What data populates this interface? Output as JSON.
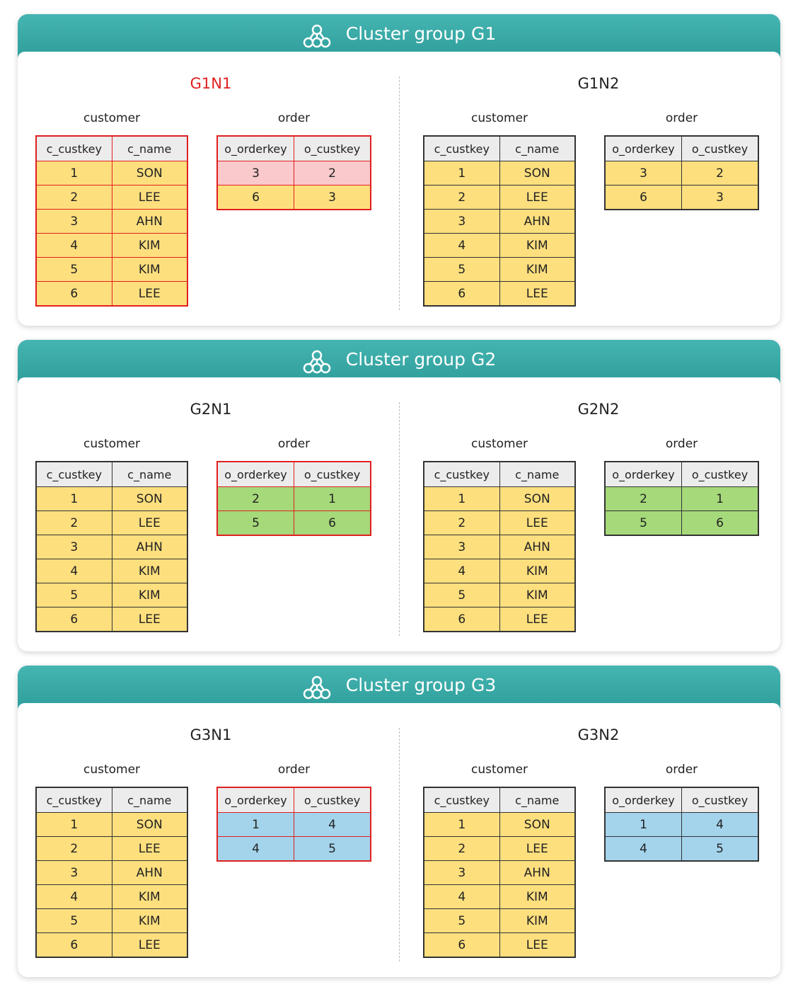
{
  "groups": [
    {
      "title": "Cluster group G1",
      "nodes": [
        {
          "name": "G1N1",
          "tables": [
            {
              "caption": "customer",
              "header": [
                "c_custkey",
                "c_name"
              ],
              "rows": [
                [
                  "1",
                  "SON"
                ],
                [
                  "2",
                  "LEE"
                ],
                [
                  "3",
                  "AHN"
                ],
                [
                  "4",
                  "KIM"
                ],
                [
                  "5",
                  "KIM"
                ],
                [
                  "6",
                  "LEE"
                ]
              ]
            },
            {
              "caption": "order",
              "header": [
                "o_orderkey",
                "o_custkey"
              ],
              "rows": [
                [
                  "3",
                  "2"
                ],
                [
                  "6",
                  "3"
                ]
              ]
            }
          ]
        },
        {
          "name": "G1N2",
          "tables": [
            {
              "caption": "customer",
              "header": [
                "c_custkey",
                "c_name"
              ],
              "rows": [
                [
                  "1",
                  "SON"
                ],
                [
                  "2",
                  "LEE"
                ],
                [
                  "3",
                  "AHN"
                ],
                [
                  "4",
                  "KIM"
                ],
                [
                  "5",
                  "KIM"
                ],
                [
                  "6",
                  "LEE"
                ]
              ]
            },
            {
              "caption": "order",
              "header": [
                "o_orderkey",
                "o_custkey"
              ],
              "rows": [
                [
                  "3",
                  "2"
                ],
                [
                  "6",
                  "3"
                ]
              ]
            }
          ]
        }
      ]
    },
    {
      "title": "Cluster group G2",
      "nodes": [
        {
          "name": "G2N1",
          "tables": [
            {
              "caption": "customer",
              "header": [
                "c_custkey",
                "c_name"
              ],
              "rows": [
                [
                  "1",
                  "SON"
                ],
                [
                  "2",
                  "LEE"
                ],
                [
                  "3",
                  "AHN"
                ],
                [
                  "4",
                  "KIM"
                ],
                [
                  "5",
                  "KIM"
                ],
                [
                  "6",
                  "LEE"
                ]
              ]
            },
            {
              "caption": "order",
              "header": [
                "o_orderkey",
                "o_custkey"
              ],
              "rows": [
                [
                  "2",
                  "1"
                ],
                [
                  "5",
                  "6"
                ]
              ]
            }
          ]
        },
        {
          "name": "G2N2",
          "tables": [
            {
              "caption": "customer",
              "header": [
                "c_custkey",
                "c_name"
              ],
              "rows": [
                [
                  "1",
                  "SON"
                ],
                [
                  "2",
                  "LEE"
                ],
                [
                  "3",
                  "AHN"
                ],
                [
                  "4",
                  "KIM"
                ],
                [
                  "5",
                  "KIM"
                ],
                [
                  "6",
                  "LEE"
                ]
              ]
            },
            {
              "caption": "order",
              "header": [
                "o_orderkey",
                "o_custkey"
              ],
              "rows": [
                [
                  "2",
                  "1"
                ],
                [
                  "5",
                  "6"
                ]
              ]
            }
          ]
        }
      ]
    },
    {
      "title": "Cluster group G3",
      "nodes": [
        {
          "name": "G3N1",
          "tables": [
            {
              "caption": "customer",
              "header": [
                "c_custkey",
                "c_name"
              ],
              "rows": [
                [
                  "1",
                  "SON"
                ],
                [
                  "2",
                  "LEE"
                ],
                [
                  "3",
                  "AHN"
                ],
                [
                  "4",
                  "KIM"
                ],
                [
                  "5",
                  "KIM"
                ],
                [
                  "6",
                  "LEE"
                ]
              ]
            },
            {
              "caption": "order",
              "header": [
                "o_orderkey",
                "o_custkey"
              ],
              "rows": [
                [
                  "1",
                  "4"
                ],
                [
                  "4",
                  "5"
                ]
              ]
            }
          ]
        },
        {
          "name": "G3N2",
          "tables": [
            {
              "caption": "customer",
              "header": [
                "c_custkey",
                "c_name"
              ],
              "rows": [
                [
                  "1",
                  "SON"
                ],
                [
                  "2",
                  "LEE"
                ],
                [
                  "3",
                  "AHN"
                ],
                [
                  "4",
                  "KIM"
                ],
                [
                  "5",
                  "KIM"
                ],
                [
                  "6",
                  "LEE"
                ]
              ]
            },
            {
              "caption": "order",
              "header": [
                "o_orderkey",
                "o_custkey"
              ],
              "rows": [
                [
                  "1",
                  "4"
                ],
                [
                  "4",
                  "5"
                ]
              ]
            }
          ]
        }
      ]
    }
  ]
}
